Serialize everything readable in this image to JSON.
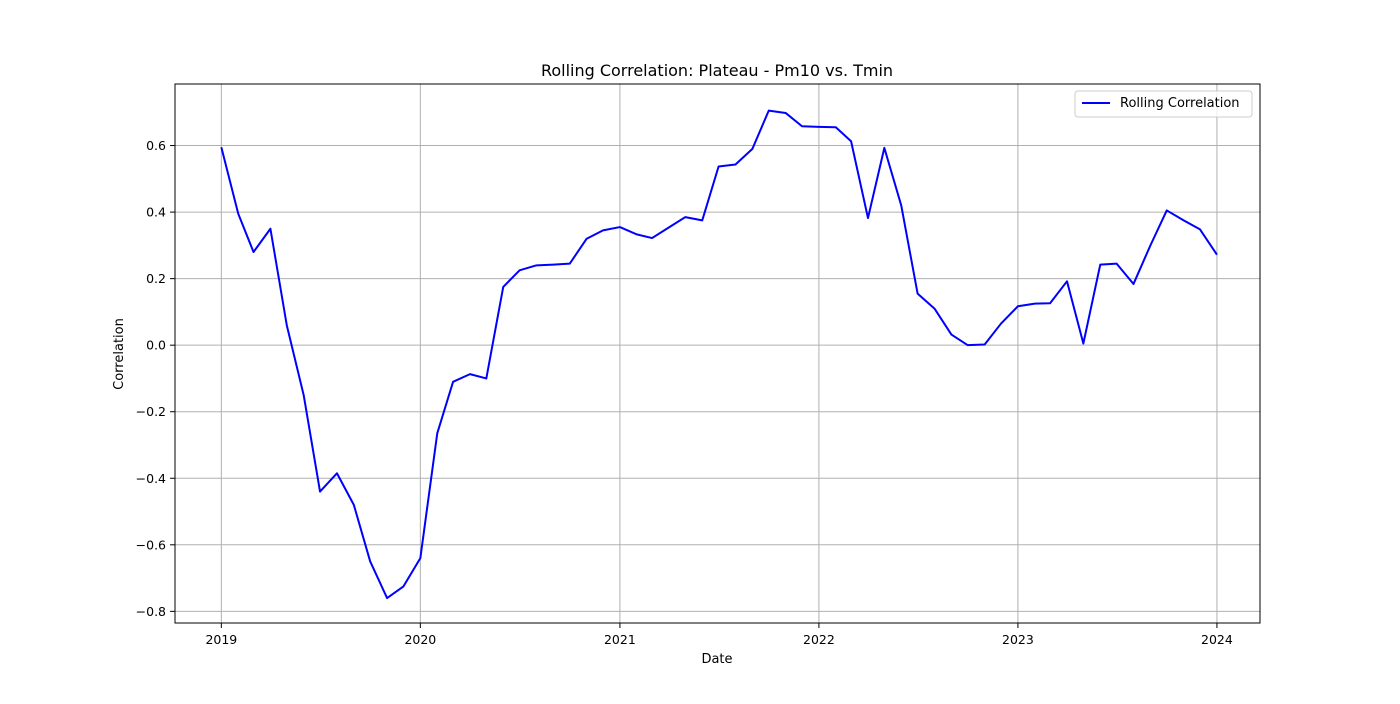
{
  "chart_data": {
    "type": "line",
    "title": "Rolling Correlation: Plateau - Pm10 vs. Tmin",
    "xlabel": "Date",
    "ylabel": "Correlation",
    "xlim": [
      "2018-10-08",
      "2024-03-20"
    ],
    "ylim": [
      -0.835,
      0.785
    ],
    "x_ticks": [
      "2019",
      "2020",
      "2021",
      "2022",
      "2023",
      "2024"
    ],
    "y_ticks": [
      "−0.8",
      "−0.6",
      "−0.4",
      "−0.2",
      "0.0",
      "0.2",
      "0.4",
      "0.6"
    ],
    "grid": true,
    "legend": {
      "position": "top-right"
    },
    "series": [
      {
        "name": "Rolling Correlation",
        "color": "#0000ff",
        "points": [
          [
            "2019-01-01",
            0.595
          ],
          [
            "2019-02-01",
            0.395
          ],
          [
            "2019-03-01",
            0.28
          ],
          [
            "2019-04-01",
            0.35
          ],
          [
            "2019-05-01",
            0.06
          ],
          [
            "2019-06-01",
            -0.15
          ],
          [
            "2019-07-01",
            -0.44
          ],
          [
            "2019-08-01",
            -0.385
          ],
          [
            "2019-09-01",
            -0.48
          ],
          [
            "2019-10-01",
            -0.65
          ],
          [
            "2019-11-01",
            -0.76
          ],
          [
            "2019-12-01",
            -0.725
          ],
          [
            "2020-01-01",
            -0.64
          ],
          [
            "2020-02-01",
            -0.265
          ],
          [
            "2020-03-01",
            -0.11
          ],
          [
            "2020-04-01",
            -0.087
          ],
          [
            "2020-05-01",
            -0.1
          ],
          [
            "2020-06-01",
            0.175
          ],
          [
            "2020-07-01",
            0.225
          ],
          [
            "2020-08-01",
            0.24
          ],
          [
            "2020-09-01",
            0.242
          ],
          [
            "2020-10-01",
            0.245
          ],
          [
            "2020-11-01",
            0.32
          ],
          [
            "2020-12-01",
            0.345
          ],
          [
            "2021-01-01",
            0.355
          ],
          [
            "2021-02-01",
            0.333
          ],
          [
            "2021-03-01",
            0.322
          ],
          [
            "2021-04-01",
            0.354
          ],
          [
            "2021-05-01",
            0.385
          ],
          [
            "2021-06-01",
            0.375
          ],
          [
            "2021-07-01",
            0.537
          ],
          [
            "2021-08-01",
            0.543
          ],
          [
            "2021-09-01",
            0.59
          ],
          [
            "2021-10-01",
            0.705
          ],
          [
            "2021-11-01",
            0.698
          ],
          [
            "2021-12-01",
            0.658
          ],
          [
            "2022-01-01",
            0.656
          ],
          [
            "2022-02-01",
            0.655
          ],
          [
            "2022-03-01",
            0.613
          ],
          [
            "2022-04-01",
            0.382
          ],
          [
            "2022-05-01",
            0.593
          ],
          [
            "2022-06-01",
            0.42
          ],
          [
            "2022-07-01",
            0.155
          ],
          [
            "2022-08-01",
            0.11
          ],
          [
            "2022-09-01",
            0.032
          ],
          [
            "2022-10-01",
            0.0
          ],
          [
            "2022-11-01",
            0.002
          ],
          [
            "2022-12-01",
            0.065
          ],
          [
            "2023-01-01",
            0.117
          ],
          [
            "2023-02-01",
            0.125
          ],
          [
            "2023-03-01",
            0.126
          ],
          [
            "2023-04-01",
            0.192
          ],
          [
            "2023-05-01",
            0.005
          ],
          [
            "2023-06-01",
            0.242
          ],
          [
            "2023-07-01",
            0.245
          ],
          [
            "2023-08-01",
            0.184
          ],
          [
            "2023-09-01",
            0.3
          ],
          [
            "2023-10-01",
            0.405
          ],
          [
            "2023-11-01",
            0.375
          ],
          [
            "2023-12-01",
            0.348
          ],
          [
            "2024-01-01",
            0.272
          ]
        ]
      }
    ]
  }
}
